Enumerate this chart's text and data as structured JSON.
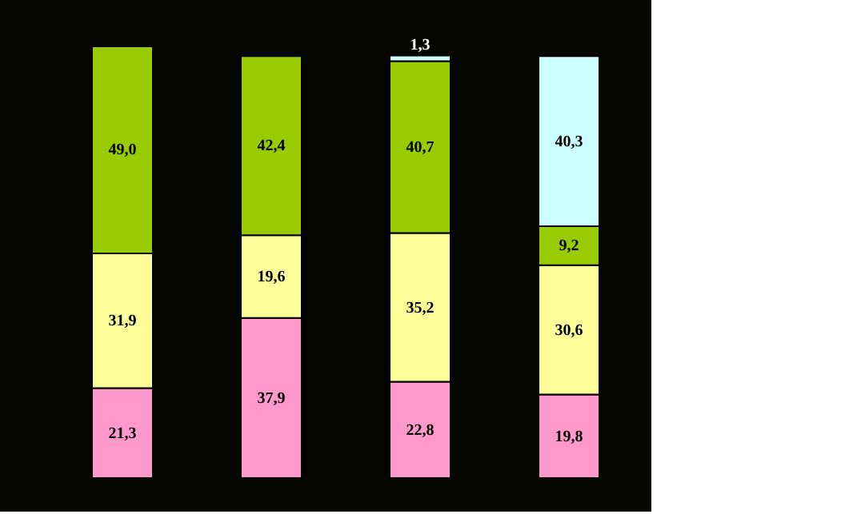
{
  "chart_data": {
    "type": "bar",
    "stacked": true,
    "categories": [
      null,
      null,
      null,
      null
    ],
    "series": [
      {
        "color": "#ff99cc",
        "values": [
          21.3,
          37.9,
          22.8,
          19.8
        ],
        "value_labels": [
          "21,3",
          "37,9",
          "22,8",
          "19,8"
        ]
      },
      {
        "color": "#ffff99",
        "values": [
          31.9,
          19.6,
          35.2,
          30.6
        ],
        "value_labels": [
          "31,9",
          "19,6",
          "35,2",
          "30,6"
        ]
      },
      {
        "color": "#99cc00",
        "values": [
          49.0,
          42.4,
          40.7,
          9.2
        ],
        "value_labels": [
          "49,0",
          "42,4",
          "40,7",
          "9,2"
        ]
      },
      {
        "color": "#ccffff",
        "values": [
          null,
          null,
          1.3,
          40.3
        ],
        "value_labels": [
          null,
          null,
          "1,3",
          "40,3"
        ]
      }
    ]
  }
}
